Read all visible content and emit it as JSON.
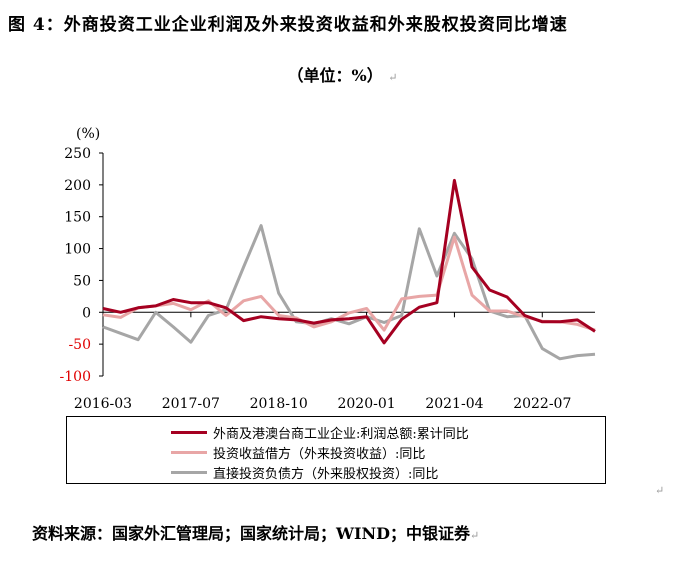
{
  "title": "图 4：外商投资工业企业利润及外来投资收益和外来股权投资同比增速",
  "subtitle": "（单位：%）",
  "source": "资料来源：国家外汇管理局；国家统计局；WIND；中银证券",
  "chart_data": {
    "type": "line",
    "ylabel": "(%)",
    "ylim": [
      -100,
      250
    ],
    "yticks": [
      "250",
      "200",
      "150",
      "100",
      "50",
      "0",
      "-50",
      "-100"
    ],
    "xtick_labels": [
      "2016-03",
      "2017-07",
      "2018-10",
      "2020-01",
      "2021-04",
      "2022-07"
    ],
    "xtick_every": 5,
    "n_points": 29,
    "series": [
      {
        "name": "外商及港澳台商工业企业:利润总额:累计同比",
        "color": "#A50021",
        "values": [
          6,
          0,
          7,
          10,
          20,
          15,
          15,
          7,
          -13,
          -7,
          -10,
          -12,
          -17,
          -12,
          -10,
          -7,
          -48,
          -11,
          8,
          15,
          207,
          71,
          35,
          24,
          -5,
          -15,
          -15,
          -12,
          -30
        ]
      },
      {
        "name": "投资收益借方（外来投资收益）:同比",
        "color": "#E8A6A6",
        "values": [
          -4,
          -8,
          7,
          10,
          14,
          4,
          18,
          -5,
          18,
          25,
          -5,
          -9,
          -23,
          -15,
          -1,
          6,
          -28,
          21,
          25,
          27,
          118,
          27,
          2,
          2,
          -7,
          -14,
          -15,
          -19,
          -28
        ]
      },
      {
        "name": "直接投资负债方（外来股权投资）:同比",
        "color": "#A6A6A6",
        "values": [
          -23,
          -33,
          -43,
          0,
          -23,
          -47,
          -5,
          4,
          71,
          136,
          30,
          -15,
          -18,
          -10,
          -18,
          -7,
          -16,
          -5,
          131,
          57,
          124,
          84,
          2,
          -7,
          -5,
          -57,
          -73,
          -68,
          -66
        ]
      }
    ]
  }
}
